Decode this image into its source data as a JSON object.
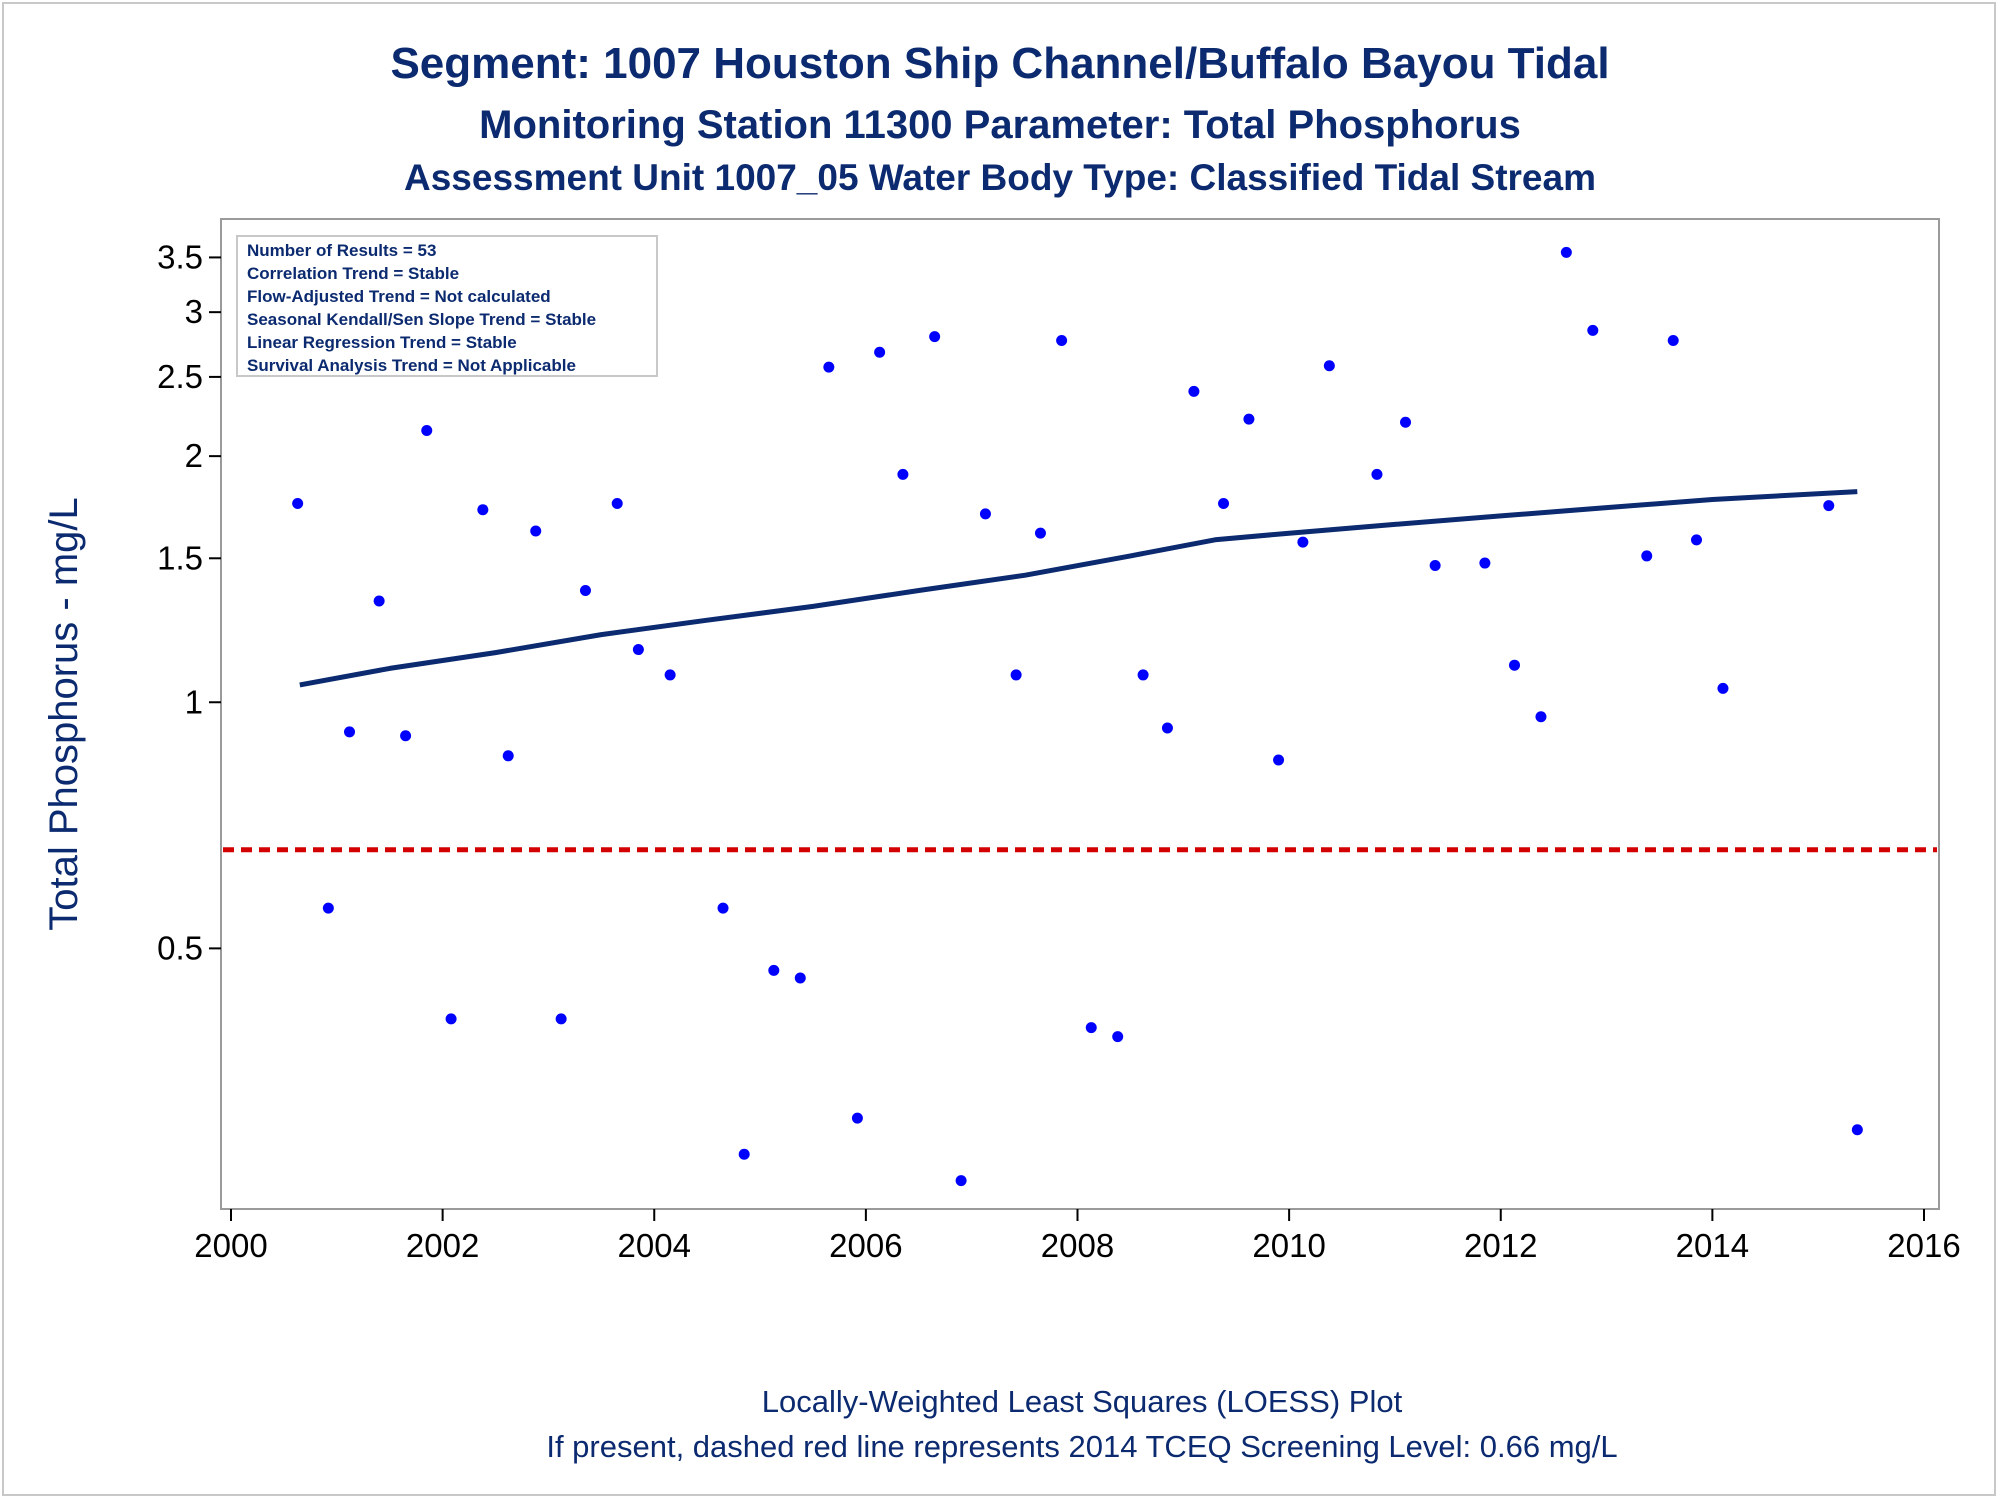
{
  "titles": {
    "line1": "Segment: 1007  Houston Ship Channel/Buffalo Bayou Tidal",
    "line2": "Monitoring Station 11300 Parameter: Total Phosphorus",
    "line3": "Assessment Unit 1007_05   Water Body Type: Classified Tidal Stream"
  },
  "footer": {
    "line1": "Locally-Weighted Least Squares (LOESS) Plot",
    "line2": "If present, dashed red line represents 2014 TCEQ Screening Level: 0.66 mg/L"
  },
  "info_box": [
    "Number of Results = 53",
    "Correlation Trend = Stable",
    "Flow-Adjusted Trend = Not calculated",
    "Seasonal Kendall/Sen Slope Trend = Stable",
    "Linear Regression Trend = Stable",
    "Survival Analysis Trend = Not Applicable"
  ],
  "colors": {
    "points": "#0000ff",
    "loess": "#0b2a6f",
    "screening": "#d40000",
    "text": "#0b2a6f"
  },
  "chart_data": {
    "type": "scatter",
    "ylabel": "Total Phosphorus - mg/L",
    "xlabel": "",
    "y_scale": "log",
    "xlim": [
      2000,
      2016
    ],
    "ylim": [
      0.24,
      3.9
    ],
    "x_ticks": [
      2000,
      2002,
      2004,
      2006,
      2008,
      2010,
      2012,
      2014,
      2016
    ],
    "x_tick_labels": [
      "2000",
      "2002",
      "2004",
      "2006",
      "2008",
      "2010",
      "2012",
      "2014",
      "2016"
    ],
    "y_ticks": [
      0.5,
      1,
      1.5,
      2,
      2.5,
      3,
      3.5
    ],
    "y_tick_labels": [
      "0.5",
      "1",
      "1.5",
      "2",
      "2.5",
      "3",
      "3.5"
    ],
    "grid": false,
    "screening_level": 0.66,
    "points": [
      {
        "x": 2000.63,
        "y": 1.75
      },
      {
        "x": 2000.92,
        "y": 0.56
      },
      {
        "x": 2001.12,
        "y": 0.92
      },
      {
        "x": 2001.4,
        "y": 1.33
      },
      {
        "x": 2001.65,
        "y": 0.91
      },
      {
        "x": 2001.85,
        "y": 2.15
      },
      {
        "x": 2002.08,
        "y": 0.41
      },
      {
        "x": 2002.38,
        "y": 1.72
      },
      {
        "x": 2002.62,
        "y": 0.86
      },
      {
        "x": 2002.88,
        "y": 1.62
      },
      {
        "x": 2003.12,
        "y": 0.41
      },
      {
        "x": 2003.35,
        "y": 1.37
      },
      {
        "x": 2003.65,
        "y": 1.75
      },
      {
        "x": 2003.85,
        "y": 1.16
      },
      {
        "x": 2004.15,
        "y": 1.08
      },
      {
        "x": 2004.65,
        "y": 0.56
      },
      {
        "x": 2004.85,
        "y": 0.28
      },
      {
        "x": 2005.13,
        "y": 0.47
      },
      {
        "x": 2005.38,
        "y": 0.46
      },
      {
        "x": 2005.65,
        "y": 2.57
      },
      {
        "x": 2005.92,
        "y": 0.31
      },
      {
        "x": 2006.13,
        "y": 2.68
      },
      {
        "x": 2006.35,
        "y": 1.9
      },
      {
        "x": 2006.65,
        "y": 2.8
      },
      {
        "x": 2006.9,
        "y": 0.26
      },
      {
        "x": 2007.13,
        "y": 1.7
      },
      {
        "x": 2007.42,
        "y": 1.08
      },
      {
        "x": 2007.65,
        "y": 1.61
      },
      {
        "x": 2007.85,
        "y": 2.77
      },
      {
        "x": 2008.13,
        "y": 0.4
      },
      {
        "x": 2008.38,
        "y": 0.39
      },
      {
        "x": 2008.62,
        "y": 1.08
      },
      {
        "x": 2008.85,
        "y": 0.93
      },
      {
        "x": 2009.1,
        "y": 2.4
      },
      {
        "x": 2009.38,
        "y": 1.75
      },
      {
        "x": 2009.62,
        "y": 2.22
      },
      {
        "x": 2009.9,
        "y": 0.85
      },
      {
        "x": 2010.13,
        "y": 1.57
      },
      {
        "x": 2010.38,
        "y": 2.58
      },
      {
        "x": 2010.83,
        "y": 1.9
      },
      {
        "x": 2011.1,
        "y": 2.2
      },
      {
        "x": 2011.38,
        "y": 1.47
      },
      {
        "x": 2011.85,
        "y": 1.48
      },
      {
        "x": 2012.13,
        "y": 1.11
      },
      {
        "x": 2012.38,
        "y": 0.96
      },
      {
        "x": 2012.62,
        "y": 3.55
      },
      {
        "x": 2012.87,
        "y": 2.85
      },
      {
        "x": 2013.38,
        "y": 1.51
      },
      {
        "x": 2013.63,
        "y": 2.77
      },
      {
        "x": 2013.85,
        "y": 1.58
      },
      {
        "x": 2014.1,
        "y": 1.04
      },
      {
        "x": 2015.1,
        "y": 1.74
      },
      {
        "x": 2015.37,
        "y": 0.3
      }
    ],
    "loess": [
      {
        "x": 2000.65,
        "y": 1.05
      },
      {
        "x": 2001.5,
        "y": 1.1
      },
      {
        "x": 2002.5,
        "y": 1.15
      },
      {
        "x": 2003.5,
        "y": 1.21
      },
      {
        "x": 2004.5,
        "y": 1.26
      },
      {
        "x": 2005.5,
        "y": 1.31
      },
      {
        "x": 2006.5,
        "y": 1.37
      },
      {
        "x": 2007.5,
        "y": 1.43
      },
      {
        "x": 2008.5,
        "y": 1.51
      },
      {
        "x": 2009.3,
        "y": 1.58
      },
      {
        "x": 2010.0,
        "y": 1.61
      },
      {
        "x": 2011.0,
        "y": 1.65
      },
      {
        "x": 2012.0,
        "y": 1.69
      },
      {
        "x": 2013.0,
        "y": 1.73
      },
      {
        "x": 2014.0,
        "y": 1.77
      },
      {
        "x": 2015.37,
        "y": 1.81
      }
    ]
  }
}
